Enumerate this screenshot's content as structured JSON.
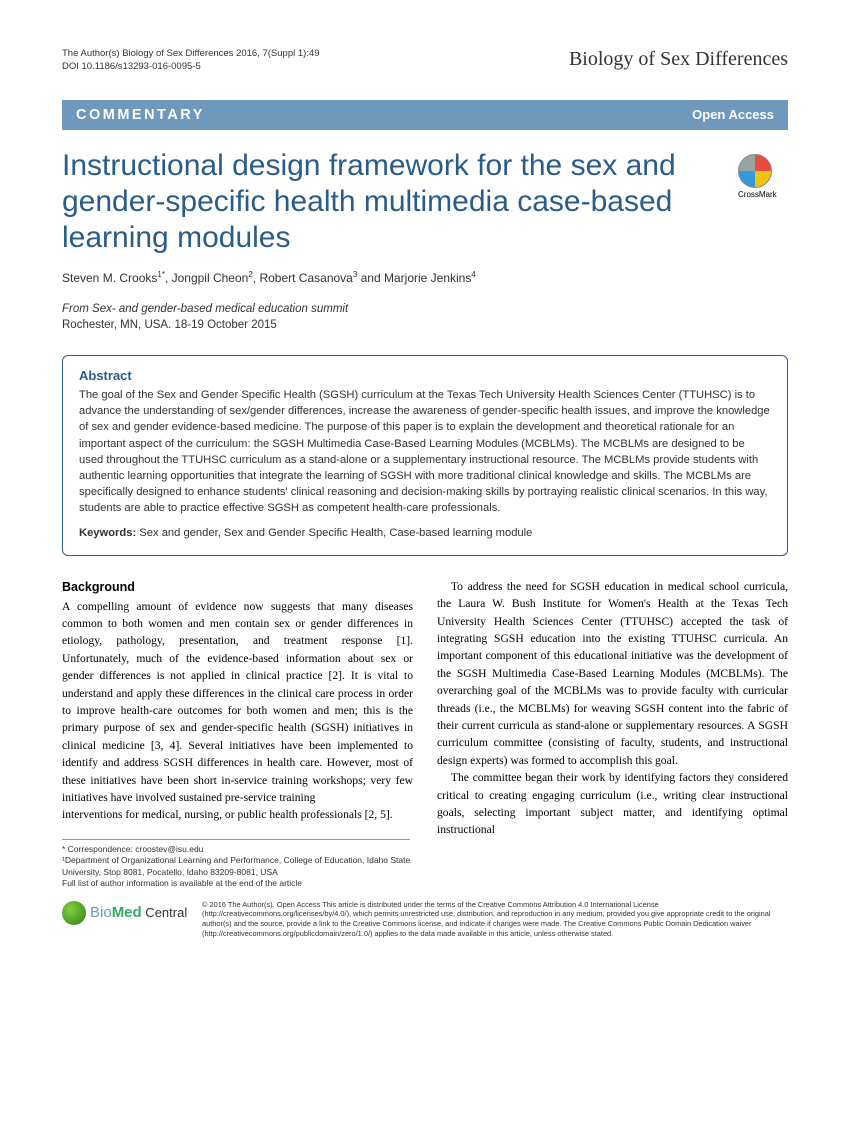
{
  "meta": {
    "citation_line1": "The Author(s) Biology of Sex Differences 2016, 7(Suppl 1):49",
    "citation_line2": "DOI 10.1186/s13293-016-0095-5",
    "journal": "Biology of Sex Differences"
  },
  "banner": {
    "type": "COMMENTARY",
    "access": "Open Access"
  },
  "crossmark_label": "CrossMark",
  "title": "Instructional design framework for the sex and gender-specific health multimedia case-based learning modules",
  "authors_html": "Steven M. Crooks<sup>1*</sup>, Jongpil Cheon<sup>2</sup>, Robert Casanova<sup>3</sup> and Marjorie Jenkins<sup>4</sup>",
  "conference": {
    "from": "From Sex- and gender-based medical education summit",
    "location": "Rochester, MN, USA. 18-19 October 2015"
  },
  "abstract": {
    "heading": "Abstract",
    "text": "The goal of the Sex and Gender Specific Health (SGSH) curriculum at the Texas Tech University Health Sciences Center (TTUHSC) is to advance the understanding of sex/gender differences, increase the awareness of gender-specific health issues, and improve the knowledge of sex and gender evidence-based medicine. The purpose of this paper is to explain the development and theoretical rationale for an important aspect of the curriculum: the SGSH Multimedia Case-Based Learning Modules (MCBLMs). The MCBLMs are designed to be used throughout the TTUHSC curriculum as a stand-alone or a supplementary instructional resource. The MCBLMs provide students with authentic learning opportunities that integrate the learning of SGSH with more traditional clinical knowledge and skills. The MCBLMs are specifically designed to enhance students' clinical reasoning and decision-making skills by portraying realistic clinical scenarios. In this way, students are able to practice effective SGSH as competent health-care professionals.",
    "keywords_label": "Keywords:",
    "keywords": " Sex and gender, Sex and Gender Specific Health, Case-based learning module"
  },
  "body": {
    "heading": "Background",
    "p1": "A compelling amount of evidence now suggests that many diseases common to both women and men contain sex or gender differences in etiology, pathology, presentation, and treatment response [1]. Unfortunately, much of the evidence-based information about sex or gender differences is not applied in clinical practice [2]. It is vital to understand and apply these differences in the clinical care process in order to improve health-care outcomes for both women and men; this is the primary purpose of sex and gender-specific health (SGSH) initiatives in clinical medicine [3, 4]. Several initiatives have been implemented to identify and address SGSH differences in health care. However, most of these initiatives have been short in-service training workshops; very few initiatives have involved sustained pre-service training",
    "p2": "interventions for medical, nursing, or public health professionals [2, 5].",
    "p3": "To address the need for SGSH education in medical school curricula, the Laura W. Bush Institute for Women's Health at the Texas Tech University Health Sciences Center (TTUHSC) accepted the task of integrating SGSH education into the existing TTUHSC curricula. An important component of this educational initiative was the development of the SGSH Multimedia Case-Based Learning Modules (MCBLMs). The overarching goal of the MCBLMs was to provide faculty with curricular threads (i.e., the MCBLMs) for weaving SGSH content into the fabric of their current curricula as stand-alone or supplementary resources. A SGSH curriculum committee (consisting of faculty, students, and instructional design experts) was formed to accomplish this goal.",
    "p4": "The committee began their work by identifying factors they considered critical to creating engaging curriculum (i.e., writing clear instructional goals, selecting important subject matter, and identifying optimal instructional"
  },
  "correspondence": {
    "line1": "* Correspondence: croostev@isu.edu",
    "line2": "¹Department of Organizational Learning and Performance, College of Education, Idaho State University, Stop 8081, Pocatello, Idaho 83209-8081, USA",
    "line3": "Full list of author information is available at the end of the article"
  },
  "license": "© 2016 The Author(s). Open Access This article is distributed under the terms of the Creative Commons Attribution 4.0 International License (http://creativecommons.org/licenses/by/4.0/), which permits unrestricted use, distribution, and reproduction in any medium, provided you give appropriate credit to the original author(s) and the source, provide a link to the Creative Commons license, and indicate if changes were made. The Creative Commons Public Domain Dedication waiver (http://creativecommons.org/publicdomain/zero/1.0/) applies to the data made available in this article, unless otherwise stated.",
  "bmc": {
    "bio": "Bio",
    "med": "Med",
    "central": " Central"
  },
  "colors": {
    "banner_bg": "#6f98bd",
    "title_color": "#2a5c8a",
    "abstract_border": "#2a5c8a"
  }
}
